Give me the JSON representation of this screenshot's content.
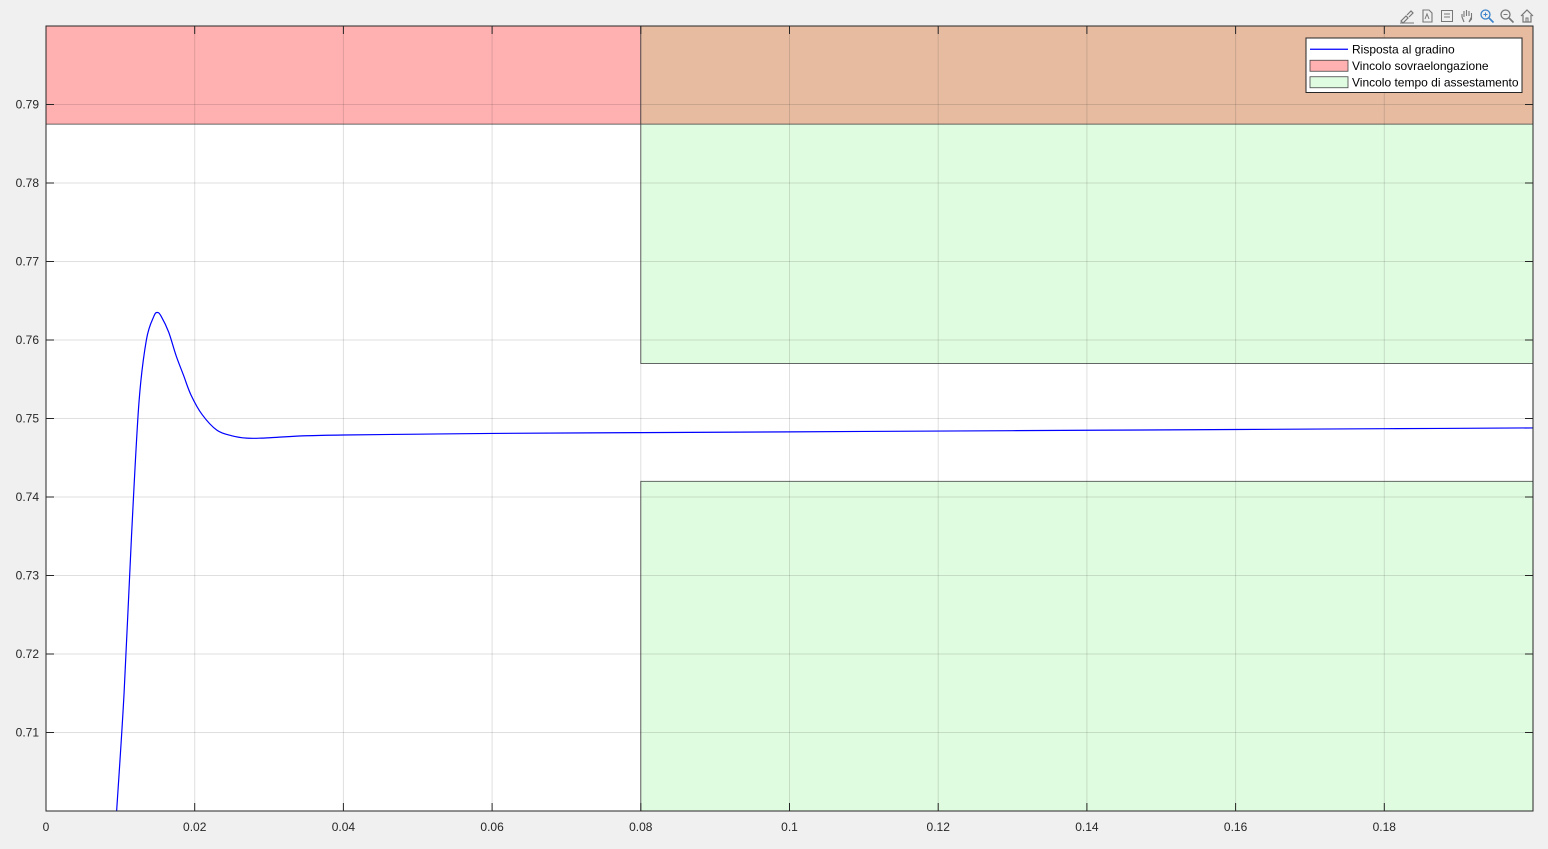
{
  "toolbar": {
    "icons": [
      "brush-icon",
      "export-icon",
      "datatip-icon",
      "pan-icon",
      "zoom-in-icon",
      "zoom-out-icon",
      "home-icon"
    ]
  },
  "chart_data": {
    "type": "line",
    "title": "",
    "xlabel": "",
    "ylabel": "",
    "xlim": [
      0,
      0.2
    ],
    "ylim": [
      0.7,
      0.8
    ],
    "grid": true,
    "legend_placement": "top-right",
    "x_ticks": [
      0,
      0.02,
      0.04,
      0.06,
      0.08,
      0.1,
      0.12,
      0.14,
      0.16,
      0.18
    ],
    "x_tick_labels": [
      "0",
      "0.02",
      "0.04",
      "0.06",
      "0.08",
      "0.1",
      "0.12",
      "0.14",
      "0.16",
      "0.18"
    ],
    "y_ticks": [
      0.71,
      0.72,
      0.73,
      0.74,
      0.75,
      0.76,
      0.77,
      0.78,
      0.79
    ],
    "y_tick_labels": [
      "0.71",
      "0.72",
      "0.73",
      "0.74",
      "0.75",
      "0.76",
      "0.77",
      "0.78",
      "0.79"
    ],
    "series": [
      {
        "name": "Risposta al gradino",
        "color": "#0000ff",
        "x": [
          0.0095,
          0.0105,
          0.0115,
          0.0125,
          0.0135,
          0.0145,
          0.015,
          0.0155,
          0.0165,
          0.0175,
          0.0185,
          0.0195,
          0.021,
          0.023,
          0.025,
          0.027,
          0.029,
          0.031,
          0.035,
          0.04,
          0.05,
          0.06,
          0.08,
          0.1,
          0.12,
          0.14,
          0.16,
          0.18,
          0.2
        ],
        "y": [
          0.7,
          0.715,
          0.735,
          0.752,
          0.76,
          0.763,
          0.7635,
          0.763,
          0.761,
          0.758,
          0.7555,
          0.753,
          0.7505,
          0.7485,
          0.7478,
          0.7475,
          0.7475,
          0.7476,
          0.7478,
          0.7479,
          0.748,
          0.7481,
          0.7482,
          0.7483,
          0.7484,
          0.7485,
          0.7486,
          0.7487,
          0.7488
        ]
      }
    ],
    "regions": [
      {
        "name": "Vincolo sovraelongazione",
        "color": "#ffb0b0",
        "x": [
          0,
          0.2
        ],
        "y": [
          0.7875,
          0.8
        ]
      },
      {
        "name": "Vincolo tempo di assestamento",
        "color": "#e0fce0",
        "x": [
          0.08,
          0.2
        ],
        "y": [
          0.757,
          0.8
        ]
      },
      {
        "name": "Vincolo tempo di assestamento",
        "color": "#e0fce0",
        "x": [
          0.08,
          0.2
        ],
        "y": [
          0.7,
          0.742
        ]
      }
    ],
    "overlap_color": "#e6bba0",
    "legend": {
      "entries": [
        {
          "label": "Risposta al gradino",
          "kind": "line",
          "color": "#0000ff"
        },
        {
          "label": "Vincolo sovraelongazione",
          "kind": "patch",
          "color": "#ffb0b0"
        },
        {
          "label": "Vincolo tempo di assestamento",
          "kind": "patch",
          "color": "#e0fce0"
        }
      ]
    }
  }
}
